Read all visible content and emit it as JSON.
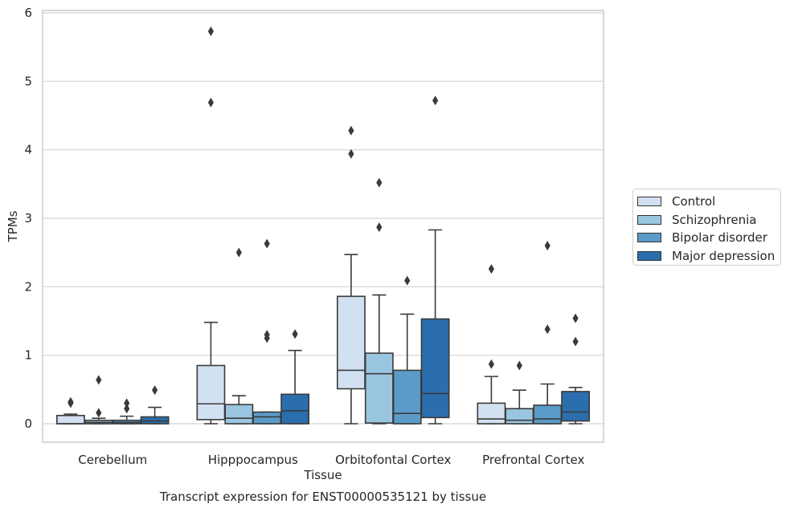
{
  "chart_data": {
    "type": "box",
    "title": "Transcript expression for ENST00000535121 by tissue",
    "xlabel": "Tissue",
    "ylabel": "TPMs",
    "ylim": [
      -0.27,
      6.03
    ],
    "yticks": [
      0,
      1,
      2,
      3,
      4,
      5,
      6
    ],
    "categories": [
      "Cerebellum",
      "Hipppocampus",
      "Orbitofontal Cortex",
      "Prefrontal Cortex"
    ],
    "grid": "horizontal",
    "legend_position": "right",
    "series": [
      {
        "name": "Control",
        "color": "#d2e1f1",
        "boxes": [
          {
            "q1": 0.0,
            "median": 0.0,
            "q3": 0.12,
            "whisker_low": 0.0,
            "whisker_high": 0.14,
            "outliers": [
              0.3,
              0.32
            ]
          },
          {
            "q1": 0.06,
            "median": 0.29,
            "q3": 0.85,
            "whisker_low": 0.0,
            "whisker_high": 1.48,
            "outliers": [
              4.69,
              5.73
            ]
          },
          {
            "q1": 0.51,
            "median": 0.78,
            "q3": 1.86,
            "whisker_low": 0.0,
            "whisker_high": 2.47,
            "outliers": [
              3.94,
              4.28
            ]
          },
          {
            "q1": 0.0,
            "median": 0.07,
            "q3": 0.3,
            "whisker_low": 0.0,
            "whisker_high": 0.69,
            "outliers": [
              0.87,
              2.26
            ]
          }
        ]
      },
      {
        "name": "Schizophrenia",
        "color": "#9ac5e0",
        "boxes": [
          {
            "q1": 0.0,
            "median": 0.02,
            "q3": 0.05,
            "whisker_low": 0.0,
            "whisker_high": 0.08,
            "outliers": [
              0.16,
              0.64
            ]
          },
          {
            "q1": 0.0,
            "median": 0.08,
            "q3": 0.28,
            "whisker_low": 0.0,
            "whisker_high": 0.41,
            "outliers": [
              2.5
            ]
          },
          {
            "q1": 0.01,
            "median": 0.73,
            "q3": 1.03,
            "whisker_low": 0.0,
            "whisker_high": 1.88,
            "outliers": [
              2.87,
              3.52
            ]
          },
          {
            "q1": 0.0,
            "median": 0.05,
            "q3": 0.22,
            "whisker_low": 0.0,
            "whisker_high": 0.49,
            "outliers": [
              0.85
            ]
          }
        ]
      },
      {
        "name": "Bipolar disorder",
        "color": "#5b9bc9",
        "boxes": [
          {
            "q1": 0.0,
            "median": 0.02,
            "q3": 0.05,
            "whisker_low": 0.0,
            "whisker_high": 0.11,
            "outliers": [
              0.22,
              0.3
            ]
          },
          {
            "q1": 0.0,
            "median": 0.1,
            "q3": 0.17,
            "whisker_low": 0.0,
            "whisker_high": 0.17,
            "outliers": [
              1.25,
              1.3,
              2.63
            ]
          },
          {
            "q1": 0.0,
            "median": 0.15,
            "q3": 0.78,
            "whisker_low": 0.0,
            "whisker_high": 1.6,
            "outliers": [
              2.09
            ]
          },
          {
            "q1": 0.0,
            "median": 0.07,
            "q3": 0.27,
            "whisker_low": 0.0,
            "whisker_high": 0.58,
            "outliers": [
              1.38,
              2.6
            ]
          }
        ]
      },
      {
        "name": "Major depression",
        "color": "#2b6ead",
        "boxes": [
          {
            "q1": 0.0,
            "median": 0.04,
            "q3": 0.1,
            "whisker_low": 0.0,
            "whisker_high": 0.24,
            "outliers": [
              0.49
            ]
          },
          {
            "q1": 0.0,
            "median": 0.19,
            "q3": 0.43,
            "whisker_low": 0.0,
            "whisker_high": 1.07,
            "outliers": [
              1.31
            ]
          },
          {
            "q1": 0.09,
            "median": 0.44,
            "q3": 1.53,
            "whisker_low": 0.0,
            "whisker_high": 2.83,
            "outliers": [
              4.72
            ]
          },
          {
            "q1": 0.04,
            "median": 0.17,
            "q3": 0.47,
            "whisker_low": 0.0,
            "whisker_high": 0.53,
            "outliers": [
              1.2,
              1.54
            ]
          }
        ]
      }
    ]
  }
}
